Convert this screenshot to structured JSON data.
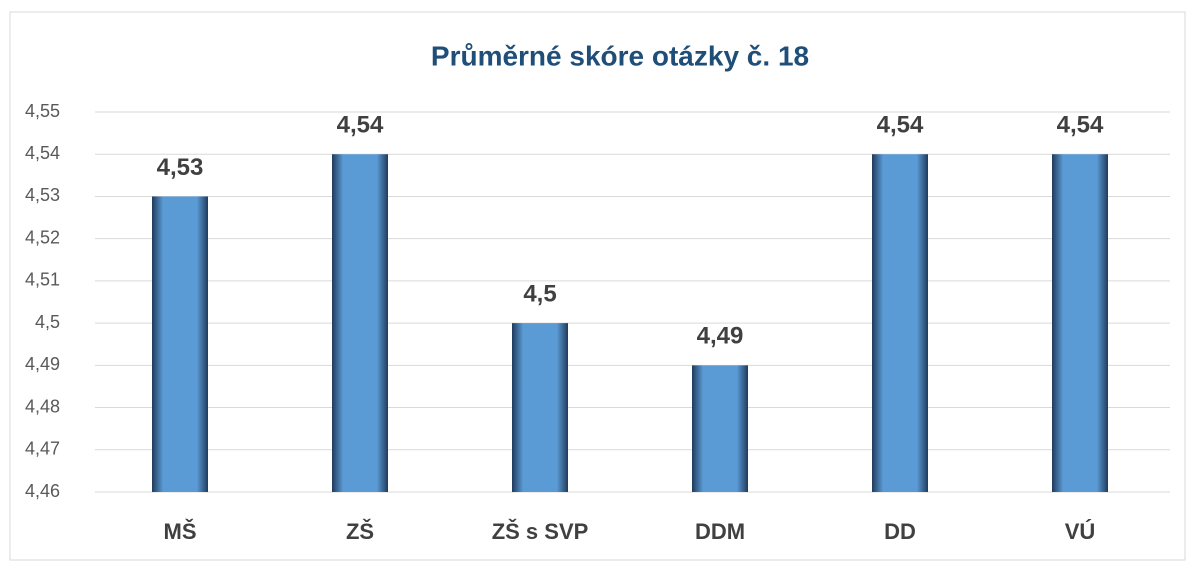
{
  "chart_data": {
    "type": "bar",
    "title": "Průměrné skóre otázky č. 18",
    "categories": [
      "MŠ",
      "ZŠ",
      "ZŠ s SVP",
      "DDM",
      "DD",
      "VÚ"
    ],
    "values": [
      4.53,
      4.54,
      4.5,
      4.49,
      4.54,
      4.54
    ],
    "value_labels": [
      "4,53",
      "4,54",
      "4,5",
      "4,49",
      "4,54",
      "4,54"
    ],
    "color": "#5b9bd5",
    "ylim": [
      4.46,
      4.55
    ],
    "yticks": [
      {
        "value": 4.46,
        "label": "4,46"
      },
      {
        "value": 4.47,
        "label": "4,47"
      },
      {
        "value": 4.48,
        "label": "4,48"
      },
      {
        "value": 4.49,
        "label": "4,49"
      },
      {
        "value": 4.5,
        "label": "4,5"
      },
      {
        "value": 4.51,
        "label": "4,51"
      },
      {
        "value": 4.52,
        "label": "4,52"
      },
      {
        "value": 4.53,
        "label": "4,53"
      },
      {
        "value": 4.54,
        "label": "4,54"
      },
      {
        "value": 4.55,
        "label": "4,55"
      }
    ],
    "grid": true
  }
}
